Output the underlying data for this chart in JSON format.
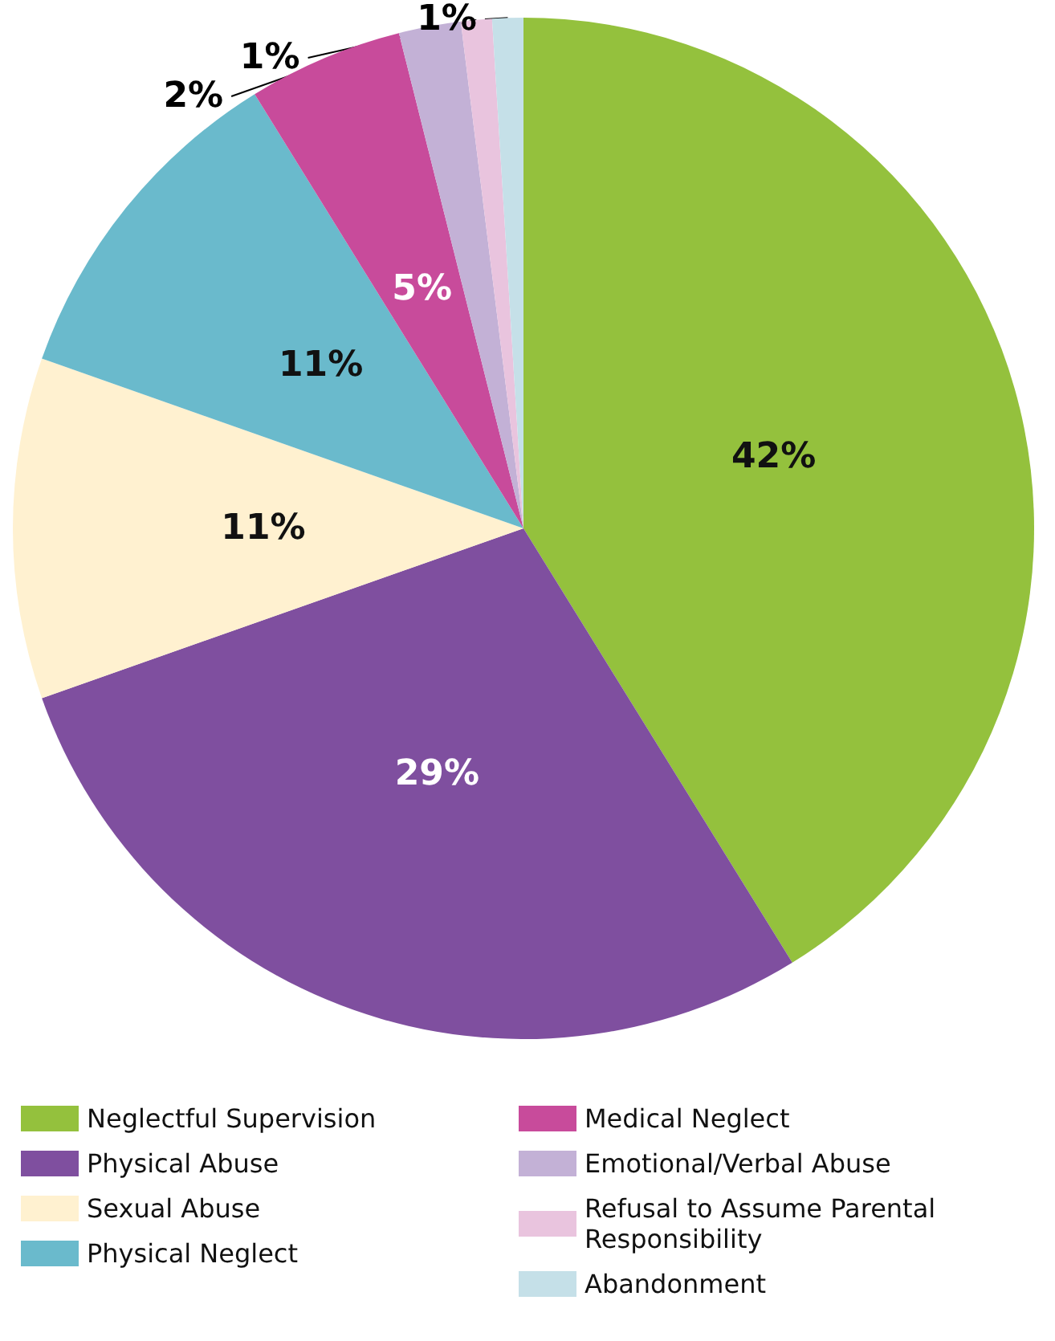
{
  "chart_data": {
    "type": "pie",
    "categories": [
      "Neglectful Supervision",
      "Physical Abuse",
      "Sexual Abuse",
      "Physical Neglect",
      "Medical Neglect",
      "Emotional/Verbal Abuse",
      "Refusal to Assume Parental Responsibility",
      "Abandonment"
    ],
    "values": [
      42,
      29,
      11,
      11,
      5,
      2,
      1,
      1
    ],
    "colors": [
      "#94c13d",
      "#7f4f9f",
      "#fff1d0",
      "#6abacc",
      "#c84b9b",
      "#c3b1d6",
      "#e9c4de",
      "#c5e0e8"
    ],
    "value_labels": [
      "42%",
      "29%",
      "11%",
      "11%",
      "5%",
      "2%",
      "1%",
      "1%"
    ],
    "legend": "bottom"
  }
}
